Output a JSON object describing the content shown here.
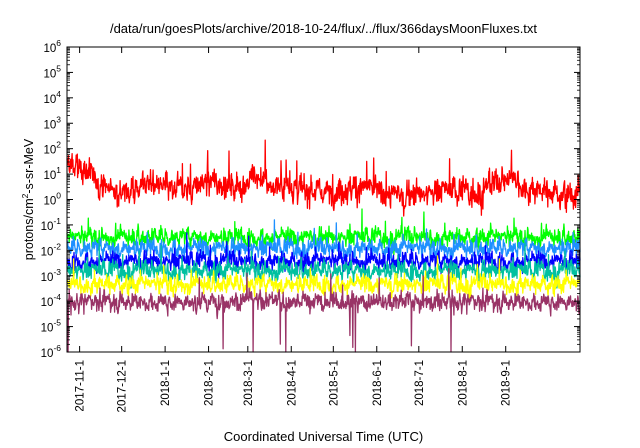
{
  "chart_data": {
    "type": "line",
    "title": "/data/run/goesPlots/archive/2018-10-24/flux/../flux/366daysMoonFluxes.txt",
    "xlabel": "Coordinated Universal Time (UTC)",
    "ylabel": "protons/cm²-s-sr-MeV",
    "ylabel_parts": {
      "pre": "protons/cm",
      "sup": "2",
      "post": "-s-sr-MeV"
    },
    "yscale": "log",
    "ylim": [
      1e-06,
      1000000.0
    ],
    "y_ticks": [
      {
        "value": 1e-06,
        "base": "10",
        "exp": "-6"
      },
      {
        "value": 1e-05,
        "base": "10",
        "exp": "-5"
      },
      {
        "value": 0.0001,
        "base": "10",
        "exp": "-4"
      },
      {
        "value": 0.001,
        "base": "10",
        "exp": "-3"
      },
      {
        "value": 0.01,
        "base": "10",
        "exp": "-2"
      },
      {
        "value": 0.1,
        "base": "10",
        "exp": "-1"
      },
      {
        "value": 1,
        "base": "10",
        "exp": "0"
      },
      {
        "value": 10.0,
        "base": "10",
        "exp": "1"
      },
      {
        "value": 100.0,
        "base": "10",
        "exp": "2"
      },
      {
        "value": 1000.0,
        "base": "10",
        "exp": "3"
      },
      {
        "value": 10000.0,
        "base": "10",
        "exp": "4"
      },
      {
        "value": 100000.0,
        "base": "10",
        "exp": "5"
      },
      {
        "value": 1000000.0,
        "base": "10",
        "exp": "6"
      }
    ],
    "xlim": [
      "2017-10-23",
      "2018-10-24"
    ],
    "x_ticks": [
      "2017-11-1",
      "2017-12-1",
      "2018-1-1",
      "2018-2-1",
      "2018-3-1",
      "2018-4-1",
      "2018-5-1",
      "2018-6-1",
      "2018-7-1",
      "2018-8-1",
      "2018-9-1"
    ],
    "grid": false,
    "legend": "none",
    "series": [
      {
        "color": "#ff0000",
        "line_style": "noisy",
        "x": [
          "2017-10-23",
          "2017-11-05",
          "2017-11-20",
          "2017-12-05",
          "2017-12-20",
          "2018-01-05",
          "2018-01-20",
          "2018-02-05",
          "2018-02-20",
          "2018-03-05",
          "2018-03-20",
          "2018-04-05",
          "2018-04-20",
          "2018-05-05",
          "2018-05-20",
          "2018-06-05",
          "2018-06-20",
          "2018-07-05",
          "2018-07-20",
          "2018-08-05",
          "2018-08-20",
          "2018-09-05",
          "2018-09-20",
          "2018-10-05",
          "2018-10-24"
        ],
        "y": [
          20,
          15,
          3,
          2,
          6,
          2,
          3,
          5,
          3,
          8,
          3,
          3,
          2,
          2.5,
          3,
          2,
          1.5,
          2,
          2.5,
          2,
          3,
          8,
          2.5,
          2,
          1.5
        ]
      },
      {
        "color": "#00ff00",
        "line_style": "noisy",
        "x": [
          "2017-10-23",
          "2017-12-01",
          "2018-02-01",
          "2018-04-01",
          "2018-06-01",
          "2018-08-01",
          "2018-10-24"
        ],
        "y": [
          0.035,
          0.035,
          0.035,
          0.035,
          0.035,
          0.035,
          0.035
        ]
      },
      {
        "color": "#1e90ff",
        "line_style": "noisy",
        "x": [
          "2017-10-23",
          "2017-12-01",
          "2018-02-01",
          "2018-04-01",
          "2018-06-01",
          "2018-08-01",
          "2018-10-24"
        ],
        "y": [
          0.013,
          0.013,
          0.013,
          0.013,
          0.013,
          0.013,
          0.013
        ]
      },
      {
        "color": "#0000ff",
        "line_style": "noisy",
        "x": [
          "2017-10-23",
          "2017-12-01",
          "2018-02-01",
          "2018-04-01",
          "2018-06-01",
          "2018-08-01",
          "2018-10-24"
        ],
        "y": [
          0.004,
          0.004,
          0.004,
          0.004,
          0.004,
          0.004,
          0.004
        ]
      },
      {
        "color": "#00c0a0",
        "line_style": "noisy",
        "x": [
          "2017-10-23",
          "2017-12-01",
          "2018-02-01",
          "2018-04-01",
          "2018-06-01",
          "2018-08-01",
          "2018-10-24"
        ],
        "y": [
          0.0017,
          0.0017,
          0.0017,
          0.0017,
          0.0017,
          0.0017,
          0.0017
        ]
      },
      {
        "color": "#ffff00",
        "line_style": "noisy",
        "x": [
          "2017-10-23",
          "2017-12-01",
          "2018-02-01",
          "2018-04-01",
          "2018-06-01",
          "2018-08-01",
          "2018-10-24"
        ],
        "y": [
          0.0005,
          0.0005,
          0.0005,
          0.0005,
          0.0005,
          0.0005,
          0.0005
        ]
      },
      {
        "color": "#993366",
        "line_style": "noisy",
        "x": [
          "2017-10-23",
          "2017-12-01",
          "2018-02-01",
          "2018-04-01",
          "2018-06-01",
          "2018-08-01",
          "2018-10-24"
        ],
        "y": [
          0.0001,
          0.0001,
          0.0001,
          0.0001,
          0.0001,
          0.0001,
          0.0001
        ]
      }
    ]
  }
}
